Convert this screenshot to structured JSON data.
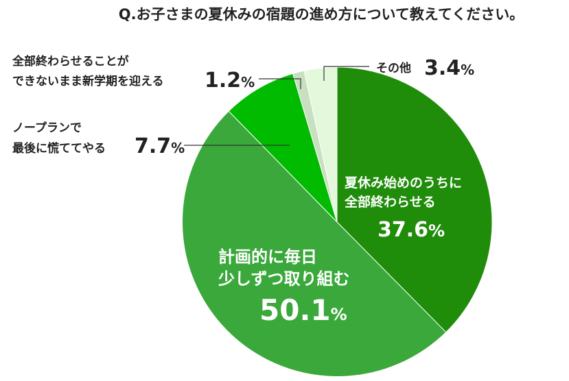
{
  "chart_data": {
    "type": "pie",
    "title": "Q.お子さまの夏休みの宿題の進め方について教えてください。",
    "unit": "%",
    "slices": [
      {
        "label_lines": [
          "夏休み始めのうちに",
          "全部終わらせる"
        ],
        "value": 37.6,
        "color": "#1f8c0a"
      },
      {
        "label_lines": [
          "計画的に毎日",
          "少しずつ取り組む"
        ],
        "value": 50.1,
        "color": "#3aa83a"
      },
      {
        "label_lines": [
          "ノープランで",
          "最後に慌ててやる"
        ],
        "value": 7.7,
        "color": "#00bb00"
      },
      {
        "label_lines": [
          "全部終わらせることが",
          "できないまま新学期を迎える"
        ],
        "value": 1.2,
        "color": "#c8e0c0"
      },
      {
        "label_lines": [
          "その他"
        ],
        "value": 3.4,
        "color": "#e4f8dc"
      }
    ],
    "value_text": [
      "37.6",
      "50.1",
      "7.7",
      "1.2",
      "3.4"
    ]
  }
}
